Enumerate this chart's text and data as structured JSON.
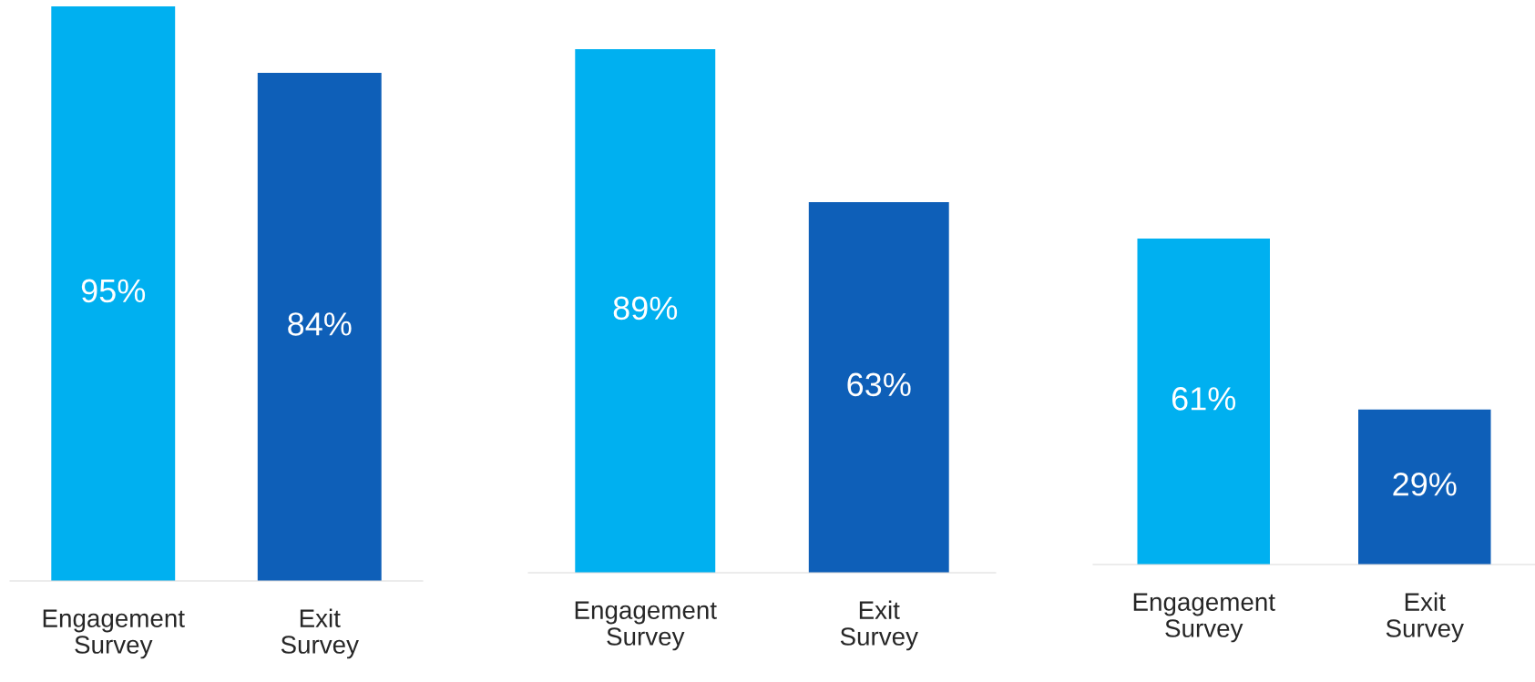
{
  "chart_data": [
    {
      "type": "bar",
      "categories": [
        "Engagement\nSurvey",
        "Exit\nSurvey"
      ],
      "colors": [
        "#00b0f0",
        "#0e5fb8"
      ],
      "values": [
        95,
        84
      ],
      "value_labels": [
        "95%",
        "84%"
      ],
      "grid": false,
      "legend": false
    },
    {
      "type": "bar",
      "categories": [
        "Engagement\nSurvey",
        "Exit\nSurvey"
      ],
      "colors": [
        "#00b0f0",
        "#0e5fb8"
      ],
      "values": [
        89,
        63
      ],
      "value_labels": [
        "89%",
        "63%"
      ],
      "grid": false,
      "legend": false
    },
    {
      "type": "bar",
      "categories": [
        "Engagement\nSurvey",
        "Exit\nSurvey"
      ],
      "colors": [
        "#00b0f0",
        "#0e5fb8"
      ],
      "values": [
        61,
        29
      ],
      "value_labels": [
        "61%",
        "29%"
      ],
      "grid": false,
      "legend": false
    }
  ]
}
